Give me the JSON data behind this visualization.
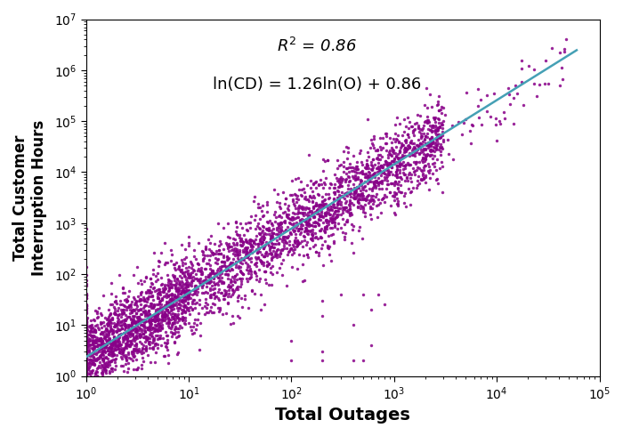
{
  "xlabel": "Total Outages",
  "ylabel": "Total Customer\nInterruption Hours",
  "xlim_log": [
    1,
    100000
  ],
  "ylim_log": [
    1,
    10000000
  ],
  "scatter_color": "#880088",
  "scatter_alpha": 0.85,
  "scatter_size": 6,
  "line_color": "#45A0B5",
  "line_width": 1.8,
  "annotation_r2": "$R^2$ = 0.86",
  "annotation_eq": "ln(CD) = 1.26ln(O) + 0.86",
  "slope": 1.26,
  "intercept": 0.86,
  "xlabel_fontsize": 14,
  "ylabel_fontsize": 12,
  "tick_fontsize": 10,
  "annotation_fontsize": 13,
  "seed": 42,
  "background_color": "#ffffff"
}
